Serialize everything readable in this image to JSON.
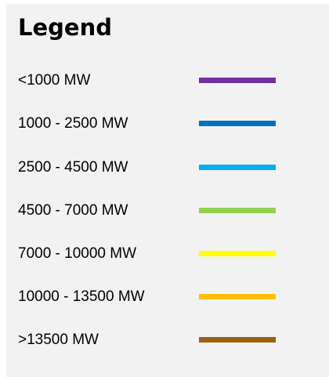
{
  "legend": {
    "title": "Legend",
    "items": [
      {
        "label": "<1000 MW",
        "color": "#7030a0"
      },
      {
        "label": "1000 - 2500 MW",
        "color": "#0070c0"
      },
      {
        "label": "2500 - 4500 MW",
        "color": "#00b0f0"
      },
      {
        "label": "4500 - 7000 MW",
        "color": "#92d050"
      },
      {
        "label": "7000 - 10000 MW",
        "color": "#ffff00"
      },
      {
        "label": "10000 - 13500 MW",
        "color": "#ffc000"
      },
      {
        "label": ">13500 MW",
        "color": "#996014"
      }
    ]
  }
}
